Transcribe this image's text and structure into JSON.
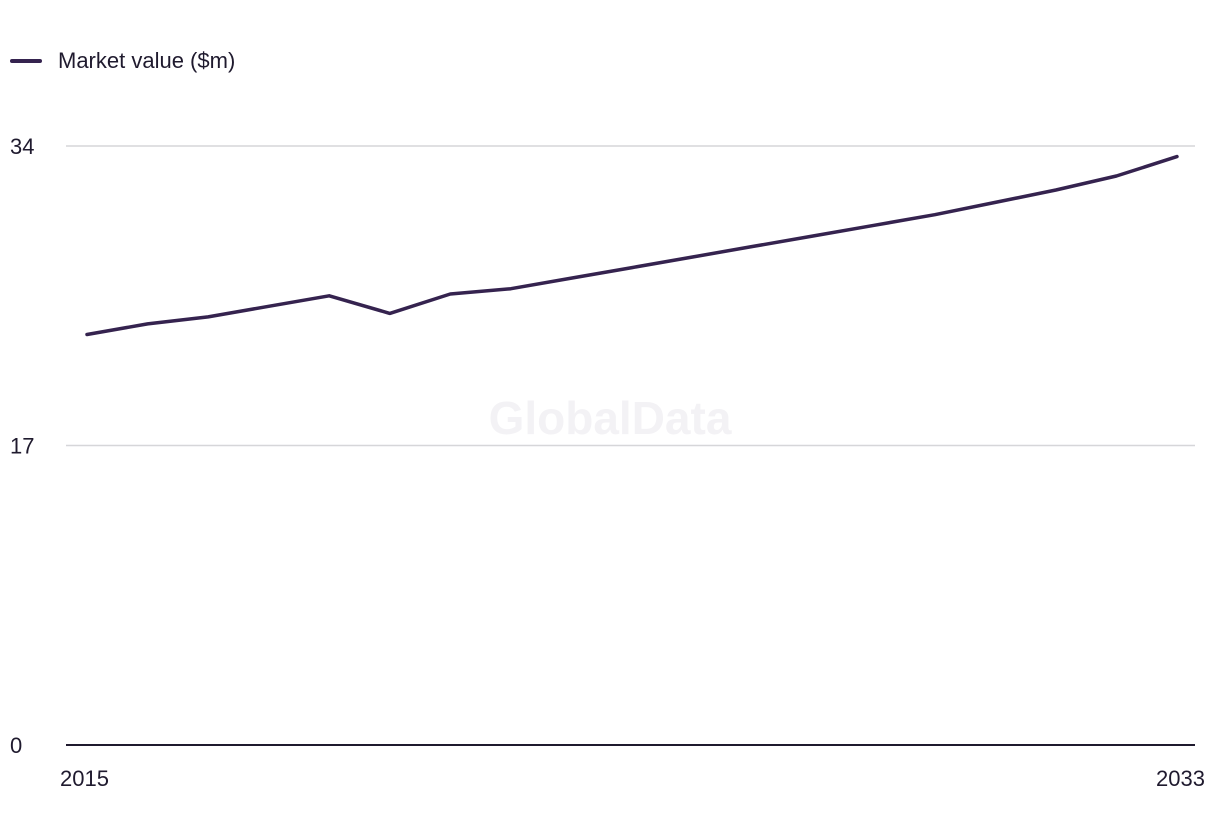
{
  "colors": {
    "series": "#35234f",
    "grid": "#d6d6d9",
    "axis": "#1f1a2e"
  },
  "watermark": "GlobalData",
  "chart_data": {
    "type": "line",
    "title": "",
    "xlabel": "",
    "ylabel": "",
    "x": [
      2015,
      2016,
      2017,
      2018,
      2019,
      2020,
      2021,
      2022,
      2023,
      2024,
      2025,
      2026,
      2027,
      2028,
      2029,
      2030,
      2031,
      2032,
      2033
    ],
    "x_tick_labels": [
      "2015",
      "2033"
    ],
    "y_ticks": [
      0,
      17,
      34
    ],
    "y_tick_labels": [
      "0",
      "17",
      "34"
    ],
    "ylim": [
      0,
      34
    ],
    "grid": true,
    "legend": "top-left",
    "series": [
      {
        "name": "Market value ($m)",
        "values": [
          23.3,
          23.9,
          24.3,
          24.9,
          25.5,
          24.5,
          25.6,
          25.9,
          26.5,
          27.1,
          27.7,
          28.3,
          28.9,
          29.5,
          30.1,
          30.8,
          31.5,
          32.3,
          33.4
        ]
      }
    ]
  }
}
